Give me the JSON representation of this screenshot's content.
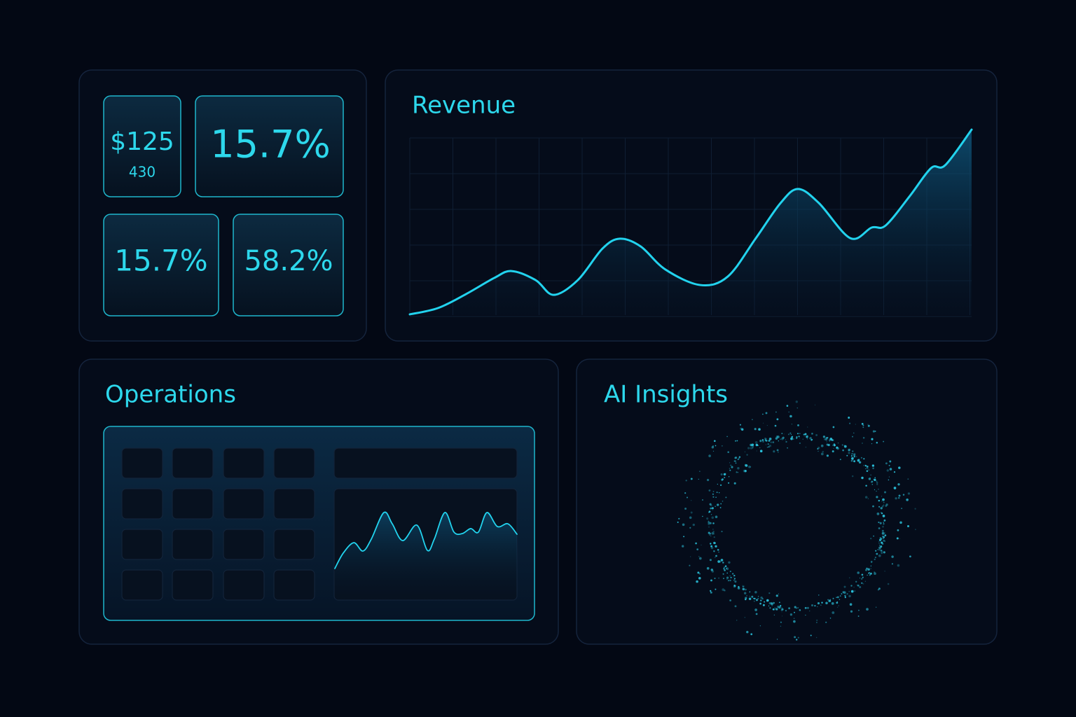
{
  "kpis": [
    {
      "value": "$125",
      "sublabel": "430"
    },
    {
      "value": "15.7%"
    },
    {
      "value": "15.7%"
    },
    {
      "value": "58.2%"
    }
  ],
  "revenue_panel": {
    "title": "Revenue",
    "chart": {
      "type": "line",
      "color": "#22d3ee",
      "x": [
        0,
        5,
        10,
        15,
        18.1,
        22.4,
        25.6,
        29.9,
        34.3,
        37.4,
        41.1,
        45.5,
        51.7,
        56.6,
        61.6,
        66,
        69.1,
        72.8,
        78.4,
        82.2,
        84.7,
        89,
        92.8,
        95.3,
        100
      ],
      "values": [
        0.4,
        3.7,
        11.1,
        19.6,
        23.3,
        18.5,
        10.7,
        18.5,
        35.2,
        40.4,
        36.3,
        24.1,
        15.9,
        20.4,
        40.7,
        59.3,
        66.7,
        59.3,
        40.7,
        46.3,
        47.4,
        63,
        77.8,
        79.3,
        98.1
      ],
      "xlim": [
        0,
        100
      ],
      "ylim": [
        0,
        100
      ]
    }
  },
  "operations_panel": {
    "title": "Operations",
    "chart": {
      "type": "line",
      "color": "#22d3ee",
      "x": [
        0,
        4.6,
        10.4,
        15.4,
        20,
        26.9,
        31.5,
        37.3,
        45,
        50.8,
        54.6,
        60.4,
        65.4,
        70,
        74.6,
        78.8,
        83.5,
        89.2,
        95,
        100
      ],
      "values": [
        28.7,
        42.7,
        52.2,
        44.6,
        55.4,
        79.6,
        69.4,
        54.1,
        68.2,
        45.2,
        55.4,
        79.6,
        61.8,
        60.5,
        65,
        61.8,
        79.6,
        66.9,
        69.4,
        59.9
      ],
      "xlim": [
        0,
        100
      ],
      "ylim": [
        0,
        100
      ]
    }
  },
  "insights_panel": {
    "title": "AI Insights"
  }
}
